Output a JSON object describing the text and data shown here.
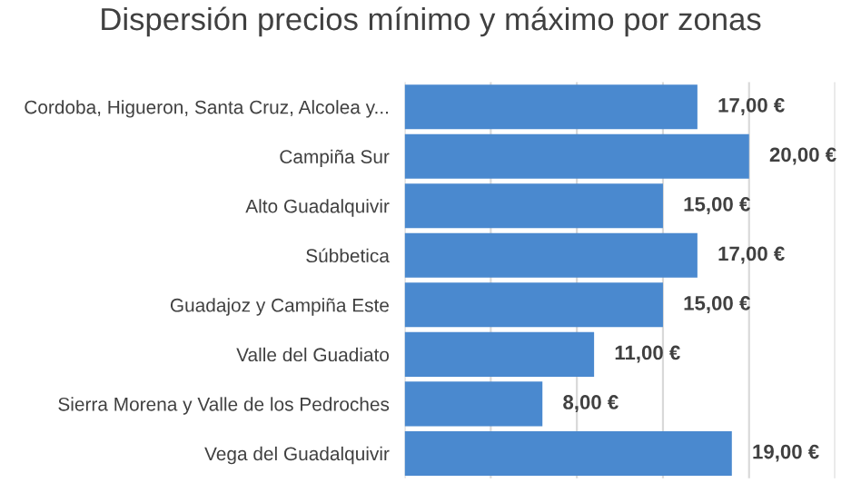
{
  "chart_data": {
    "type": "bar",
    "orientation": "horizontal",
    "title": "Dispersión precios mínimo y máximo por zonas",
    "categories": [
      "Cordoba, Higueron, Santa Cruz, Alcolea y...",
      "Campiña Sur",
      "Alto Guadalquivir",
      "Súbbetica",
      "Guadajoz y Campiña Este",
      "Valle del Guadiato",
      "Sierra Morena y Valle de los Pedroches",
      "Vega del Guadalquivir"
    ],
    "values": [
      17,
      20,
      15,
      17,
      15,
      11,
      8,
      19
    ],
    "value_labels": [
      "17,00 €",
      "20,00 €",
      "15,00 €",
      "17,00 €",
      "15,00 €",
      "11,00 €",
      "8,00 €",
      "19,00 €"
    ],
    "color": "#4a89cf",
    "xlim": [
      0,
      25
    ],
    "xticks": [
      {
        "value": 0,
        "label": null
      },
      {
        "value": 5,
        "label": null
      },
      {
        "value": 10,
        "label": null
      },
      {
        "value": 15,
        "label": null
      },
      {
        "value": 20,
        "label": null
      },
      {
        "value": 25,
        "label": null
      }
    ],
    "grid": "x",
    "tick_labels": "y"
  }
}
